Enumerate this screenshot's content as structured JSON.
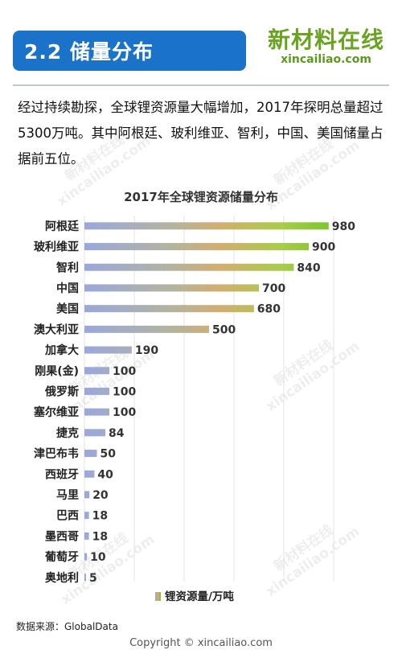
{
  "header": {
    "title": "2.2 储量分布"
  },
  "logo": {
    "cn": "新材料在线",
    "en": "xincailiao.com"
  },
  "intro": "经过持续勘探，全球锂资源量大幅增加，2017年探明总量超过5300万吨。其中阿根廷、玻利维亚、智利，中国、美国储量占据前五位。",
  "watermark": {
    "cn": "新材料在线",
    "en": "xincailiao.com"
  },
  "chart_data": {
    "type": "bar",
    "orientation": "horizontal",
    "title": "2017年全球锂资源储量分布",
    "categories": [
      "阿根廷",
      "玻利维亚",
      "智利",
      "中国",
      "美国",
      "澳大利亚",
      "加拿大",
      "刚果(金)",
      "俄罗斯",
      "塞尔维亚",
      "捷克",
      "津巴布韦",
      "西班牙",
      "马里",
      "巴西",
      "墨西哥",
      "葡萄牙",
      "奥地利"
    ],
    "series": [
      {
        "name": "锂资源量/万吨",
        "values": [
          980,
          900,
          840,
          700,
          680,
          500,
          190,
          100,
          100,
          100,
          84,
          50,
          40,
          20,
          18,
          18,
          10,
          5
        ]
      }
    ],
    "xlim": [
      0,
      1000
    ],
    "data_labels": true,
    "grid": "vertical",
    "legend_position": "bottom"
  },
  "footer": {
    "source": "数据来源：GlobalData",
    "copyright": "Copyright © xincailiao.com"
  }
}
